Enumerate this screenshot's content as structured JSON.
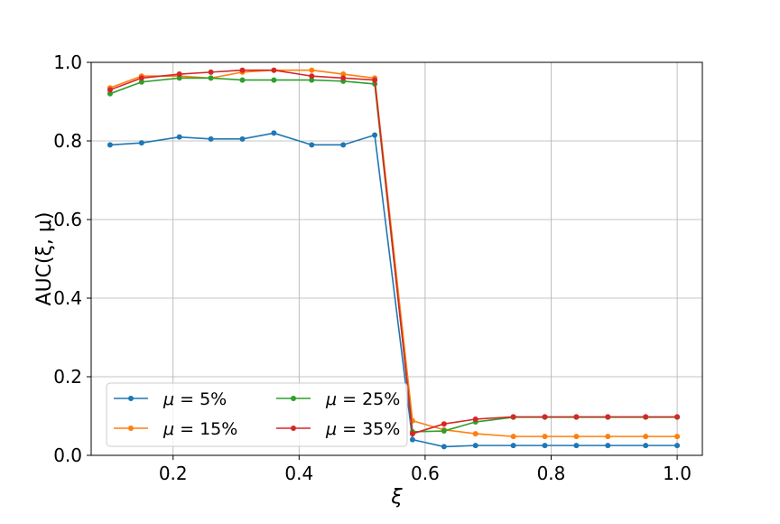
{
  "chart_data": {
    "type": "line",
    "title": "",
    "xlabel": "ξ",
    "ylabel": "AUC(ξ, μ)",
    "xlim": [
      0.07,
      1.04
    ],
    "ylim": [
      0.0,
      1.0
    ],
    "xticks": [
      0.2,
      0.4,
      0.6,
      0.8,
      1.0
    ],
    "xtick_labels": [
      "0.2",
      "0.4",
      "0.6",
      "0.8",
      "1.0"
    ],
    "yticks": [
      0.0,
      0.2,
      0.4,
      0.6,
      0.8,
      1.0
    ],
    "ytick_labels": [
      "0.0",
      "0.2",
      "0.4",
      "0.6",
      "0.8",
      "1.0"
    ],
    "grid": true,
    "legend_position": "lower-left",
    "legend_columns": 2,
    "x": [
      0.1,
      0.15,
      0.21,
      0.26,
      0.31,
      0.36,
      0.42,
      0.47,
      0.52,
      0.58,
      0.63,
      0.68,
      0.74,
      0.79,
      0.84,
      0.89,
      0.95,
      1.0
    ],
    "series": [
      {
        "name": "μ = 5%",
        "name_prefix": "μ = ",
        "name_value": "5%",
        "color": "#1f77b4",
        "values": [
          0.79,
          0.795,
          0.81,
          0.805,
          0.805,
          0.82,
          0.79,
          0.79,
          0.815,
          0.04,
          0.022,
          0.025,
          0.025,
          0.025,
          0.025,
          0.025,
          0.025,
          0.025
        ]
      },
      {
        "name": "μ = 15%",
        "name_prefix": "μ = ",
        "name_value": "15%",
        "color": "#ff7f0e",
        "values": [
          0.935,
          0.965,
          0.965,
          0.96,
          0.975,
          0.98,
          0.98,
          0.97,
          0.96,
          0.088,
          0.065,
          0.055,
          0.048,
          0.048,
          0.048,
          0.048,
          0.048,
          0.048
        ]
      },
      {
        "name": "μ = 25%",
        "name_prefix": "μ = ",
        "name_value": "25%",
        "color": "#2ca02c",
        "values": [
          0.92,
          0.95,
          0.96,
          0.96,
          0.955,
          0.955,
          0.955,
          0.952,
          0.945,
          0.06,
          0.062,
          0.085,
          0.097,
          0.097,
          0.097,
          0.097,
          0.097,
          0.097
        ]
      },
      {
        "name": "μ = 35%",
        "name_prefix": "μ = ",
        "name_value": "35%",
        "color": "#d62728",
        "values": [
          0.93,
          0.96,
          0.97,
          0.975,
          0.98,
          0.98,
          0.965,
          0.96,
          0.955,
          0.055,
          0.08,
          0.092,
          0.098,
          0.098,
          0.098,
          0.098,
          0.098,
          0.098
        ]
      }
    ]
  }
}
